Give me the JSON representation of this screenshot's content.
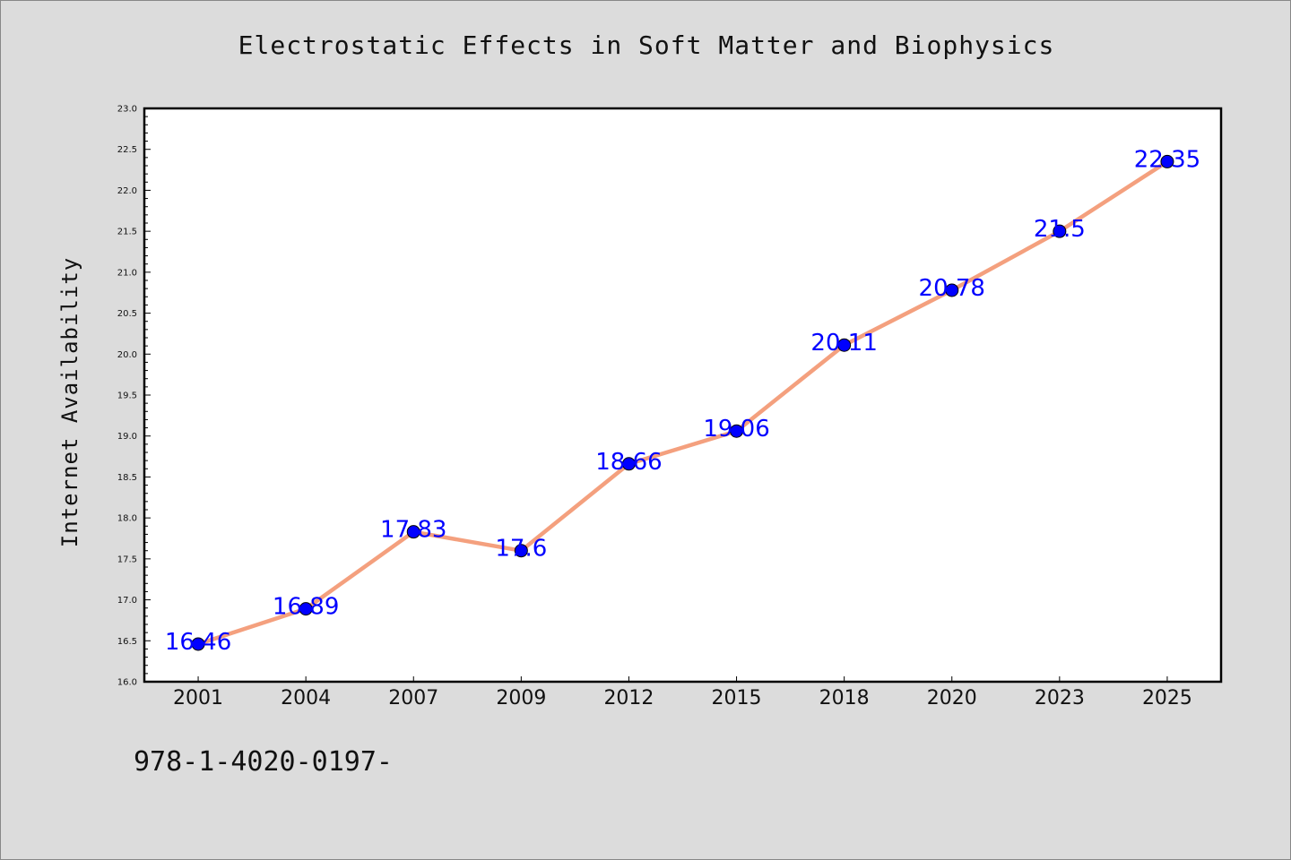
{
  "footer": {
    "text": "978-1-4020-0197-"
  },
  "colors": {
    "line": "#f4a07e",
    "marker": "#0000ff",
    "data_label": "#0000ff",
    "background": "#dcdcdc",
    "plot_background": "#ffffff"
  },
  "chart_data": {
    "type": "line",
    "title": "Electrostatic Effects in Soft Matter and Biophysics",
    "xlabel": "",
    "ylabel": "Internet Availability",
    "categories": [
      "2001",
      "2004",
      "2007",
      "2009",
      "2012",
      "2015",
      "2018",
      "2020",
      "2023",
      "2025"
    ],
    "series": [
      {
        "values": [
          16.46,
          16.89,
          17.83,
          17.6,
          18.66,
          19.06,
          20.11,
          20.78,
          21.5,
          22.35
        ],
        "data_labels": [
          "16.46",
          "16.89",
          "17.83",
          "17.6",
          "18.66",
          "19.06",
          "20.11",
          "20.78",
          "21.5",
          "22.35"
        ]
      }
    ],
    "ylim": [
      16.0,
      23.0
    ],
    "yticks": [
      "16.0",
      "16.5",
      "17.0",
      "17.5",
      "18.0",
      "18.5",
      "19.0",
      "19.5",
      "20.0",
      "20.5",
      "21.0",
      "21.5",
      "22.0",
      "22.5",
      "23.0"
    ],
    "grid": false,
    "legend": "none"
  }
}
